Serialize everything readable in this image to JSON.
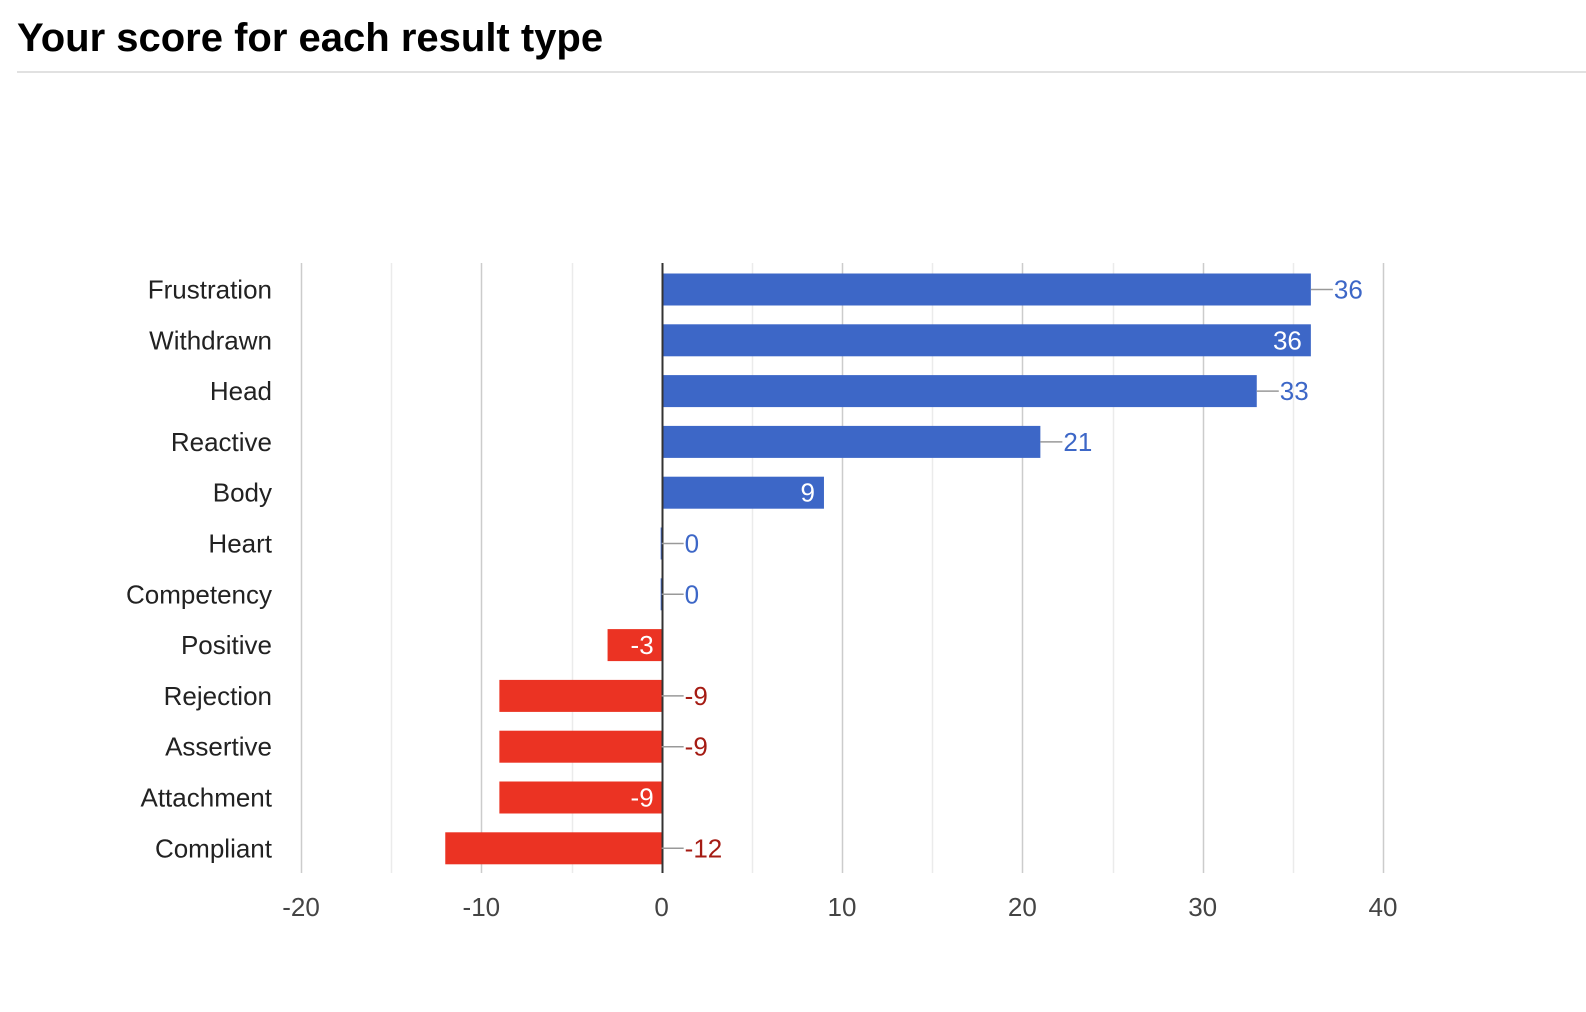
{
  "header": {
    "title": "Your score for each result type"
  },
  "chart_data": {
    "type": "bar",
    "orientation": "horizontal",
    "categories": [
      "Frustration",
      "Withdrawn",
      "Head",
      "Reactive",
      "Body",
      "Heart",
      "Competency",
      "Positive",
      "Rejection",
      "Assertive",
      "Attachment",
      "Compliant"
    ],
    "values": [
      36,
      36,
      33,
      21,
      9,
      0,
      0,
      -3,
      -9,
      -9,
      -9,
      -12
    ],
    "data_labels": [
      "36",
      "36",
      "33",
      "21",
      "9",
      "0",
      "0",
      "-3",
      "-9",
      "-9",
      "-9",
      "-12"
    ],
    "label_inside_bar": [
      false,
      true,
      false,
      false,
      true,
      false,
      false,
      true,
      false,
      false,
      true,
      false
    ],
    "xlim": [
      -20,
      40
    ],
    "xticks": [
      -20,
      -10,
      0,
      10,
      20,
      30,
      40
    ],
    "xtick_labels": [
      "-20",
      "-10",
      "0",
      "10",
      "20",
      "30",
      "40"
    ],
    "title": "",
    "xlabel": "",
    "ylabel": "",
    "grid": true,
    "legend": "none",
    "colors": {
      "positive_bar": "#3d67c7",
      "negative_bar": "#eb3323",
      "positive_label": "#3d67c7",
      "negative_label": "#a51b13",
      "inside_label": "#ffffff",
      "category_text": "#222222",
      "tick_text": "#444444",
      "major_grid": "#cccccc",
      "minor_grid": "#ebebeb",
      "zero_line": "#333333",
      "leader_line": "#999999"
    }
  }
}
